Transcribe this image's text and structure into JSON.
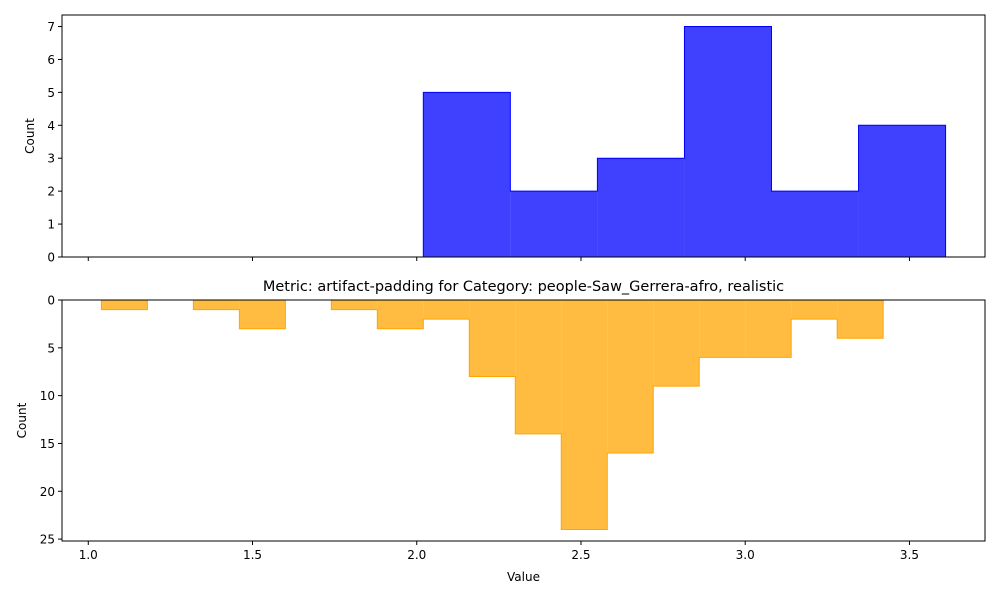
{
  "chart_data": [
    {
      "type": "histogram",
      "title": "",
      "xlabel": "",
      "ylabel": "Count",
      "xlim": [
        0.92,
        3.73
      ],
      "ylim": [
        0,
        7.35
      ],
      "y_inverted": false,
      "xticks": [
        1.0,
        1.5,
        2.0,
        2.5,
        3.0,
        3.5
      ],
      "xtick_labels_visible": false,
      "yticks": [
        0,
        1,
        2,
        3,
        4,
        5,
        6,
        7
      ],
      "fill_color": "#0000ff",
      "fill_opacity": 0.75,
      "edge_color": "#0000ff",
      "bin_edges": [
        2.02,
        2.285,
        2.55,
        2.815,
        3.08,
        3.345,
        3.61
      ],
      "counts": [
        5,
        2,
        3,
        7,
        2,
        4
      ],
      "grid": false,
      "legend": "none"
    },
    {
      "type": "histogram",
      "title": "Metric: artifact-padding for Category: people-Saw_Gerrera-afro, realistic",
      "xlabel": "Value",
      "ylabel": "Count",
      "xlim": [
        0.92,
        3.73
      ],
      "ylim": [
        25.2,
        0
      ],
      "y_inverted": true,
      "xticks": [
        1.0,
        1.5,
        2.0,
        2.5,
        3.0,
        3.5
      ],
      "xtick_labels_visible": true,
      "yticks": [
        0,
        5,
        10,
        15,
        20,
        25
      ],
      "fill_color": "#ffa500",
      "fill_opacity": 0.75,
      "edge_color": "#ffa500",
      "bin_edges": [
        1.04,
        1.18,
        1.32,
        1.46,
        1.6,
        1.74,
        1.88,
        2.02,
        2.16,
        2.3,
        2.44,
        2.58,
        2.72,
        2.86,
        3.0,
        3.14,
        3.28,
        3.42
      ],
      "counts": [
        1,
        0,
        1,
        3,
        0,
        1,
        3,
        2,
        8,
        14,
        24,
        16,
        9,
        6,
        6,
        2,
        4
      ],
      "grid": false,
      "legend": "none"
    }
  ]
}
